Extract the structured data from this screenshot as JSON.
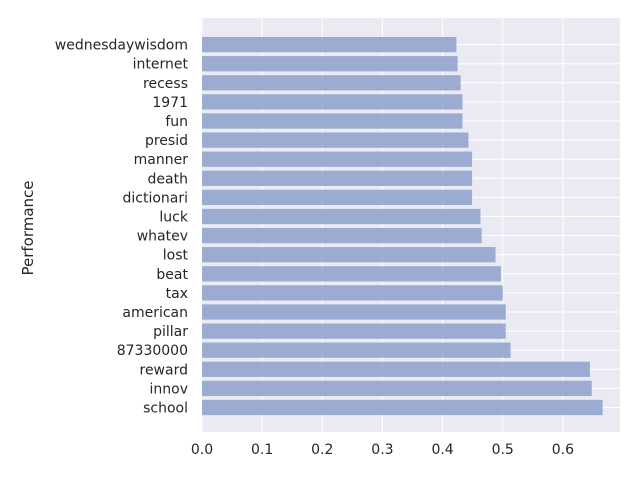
{
  "chart_data": {
    "type": "bar",
    "orientation": "horizontal",
    "ylabel": "Performance",
    "xlabel": "",
    "xlim": [
      0,
      0.695
    ],
    "xticks": [
      "0.0",
      "0.1",
      "0.2",
      "0.3",
      "0.4",
      "0.5",
      "0.6"
    ],
    "grid": true,
    "bar_color": "#8da0cb",
    "background_color": "#eaeaf2",
    "categories": [
      "school",
      "innov",
      "reward",
      "87330000",
      "pillar",
      "american",
      "tax",
      "beat",
      "lost",
      "whatev",
      "luck",
      "dictionari",
      "death",
      "manner",
      "presid",
      "fun",
      "1971",
      "recess",
      "internet",
      "wednesdaywisdom"
    ],
    "values": [
      0.666,
      0.648,
      0.645,
      0.513,
      0.505,
      0.505,
      0.5,
      0.497,
      0.488,
      0.465,
      0.463,
      0.449,
      0.449,
      0.449,
      0.443,
      0.433,
      0.433,
      0.43,
      0.425,
      0.423
    ]
  }
}
